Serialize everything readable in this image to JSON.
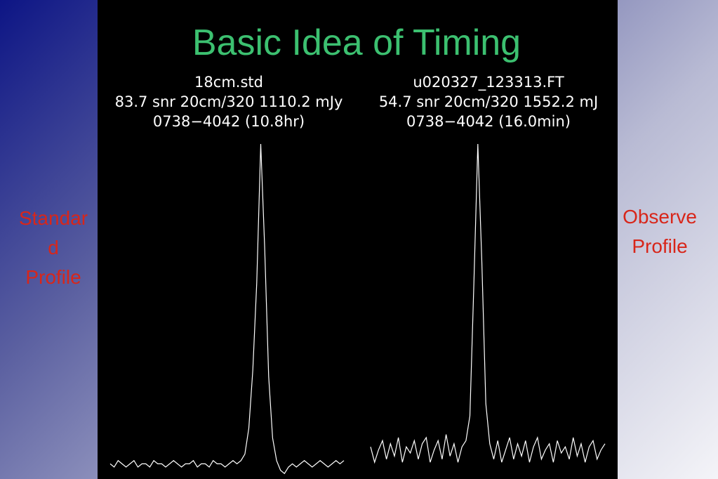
{
  "title": "Basic Idea of Timing",
  "left_label": [
    "Standar",
    "d",
    "Profile"
  ],
  "right_label": [
    "Observe",
    "Profile"
  ],
  "profiles": [
    {
      "header": [
        "18cm.std",
        "83.7 snr  20cm/320 1110.2 mJy",
        "0738−4042  (10.8hr)"
      ],
      "values": [
        1,
        0,
        2,
        1,
        0,
        1,
        2,
        0,
        1,
        1,
        0,
        2,
        1,
        1,
        0,
        1,
        2,
        1,
        0,
        1,
        1,
        2,
        0,
        1,
        1,
        0,
        2,
        1,
        1,
        0,
        1,
        2,
        1,
        2,
        4,
        12,
        30,
        57,
        100,
        68,
        28,
        9,
        2,
        -1,
        -2,
        0,
        1,
        0,
        1,
        2,
        1,
        0,
        1,
        2,
        1,
        0,
        1,
        2,
        1,
        2
      ]
    },
    {
      "header": [
        "u020327_123313.FT",
        "54.7 snr  20cm/320 1552.2 mJ",
        "0738−4042  (16.0min)"
      ],
      "values": [
        2,
        -3,
        1,
        4,
        -2,
        3,
        -1,
        5,
        -3,
        2,
        0,
        4,
        -2,
        3,
        5,
        -3,
        1,
        4,
        -2,
        6,
        -1,
        3,
        -3,
        2,
        4,
        12,
        55,
        100,
        62,
        16,
        3,
        -2,
        4,
        -3,
        1,
        5,
        -2,
        3,
        -1,
        4,
        -3,
        2,
        5,
        -2,
        1,
        3,
        -3,
        4,
        0,
        2,
        -2,
        5,
        -1,
        3,
        -3,
        2,
        4,
        -2,
        1,
        3
      ]
    }
  ]
}
